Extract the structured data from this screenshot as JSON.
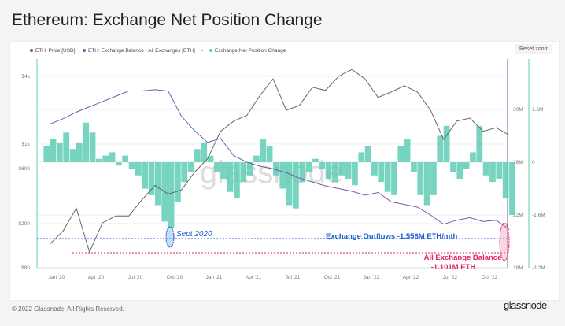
{
  "title": "Ethereum: Exchange Net Position Change",
  "reset_zoom": "Reset zoom",
  "footer": "© 2022 Glassnode. All Rights Reserved.",
  "logo": "glassnode",
  "watermark": "glassnode",
  "colors": {
    "price": "#666666",
    "balance": "#6a5fa8",
    "netchange": "#5fcdb5",
    "outflow": "#1e5fd6",
    "balanceAnno": "#e0245e"
  },
  "chart_data": {
    "type": "line+bar",
    "title": "Ethereum: Exchange Net Position Change",
    "legend": [
      "ETH: Price [USD]",
      "ETH: Exchange Balance - All Exchanges [ETH]",
      "Exchange Net Position Change"
    ],
    "legend_placement": "top-left",
    "x_ticks": [
      "Jan '20",
      "Apr '20",
      "Jul '20",
      "Oct '20",
      "Jan '21",
      "Apr '21",
      "Jul '21",
      "Oct '21",
      "Jan '22",
      "Apr '22",
      "Jul '22",
      "Oct '22"
    ],
    "y_left_ticks": [
      "$4k",
      "$1k",
      "$600",
      "$200",
      "$80"
    ],
    "y_right1_ticks": [
      "30M",
      "26M",
      "22M",
      "18M"
    ],
    "y_right2_ticks": [
      "1.6M",
      "0",
      "-1.6M",
      "-3.2M"
    ],
    "months": [
      "Dec19",
      "Jan20",
      "Feb20",
      "Mar20",
      "Apr20",
      "May20",
      "Jun20",
      "Jul20",
      "Aug20",
      "Sep20",
      "Oct20",
      "Nov20",
      "Dec20",
      "Jan21",
      "Feb21",
      "Mar21",
      "Apr21",
      "May21",
      "Jun21",
      "Jul21",
      "Aug21",
      "Sep21",
      "Oct21",
      "Nov21",
      "Dec21",
      "Jan22",
      "Feb22",
      "Mar22",
      "Apr22",
      "May22",
      "Jun22",
      "Jul22",
      "Aug22",
      "Sep22",
      "Oct22",
      "Nov22"
    ],
    "price_usd": [
      130,
      170,
      270,
      110,
      200,
      230,
      230,
      320,
      430,
      360,
      390,
      560,
      740,
      1300,
      1600,
      1800,
      2700,
      3800,
      2000,
      2200,
      3200,
      3000,
      4000,
      4600,
      3800,
      2600,
      2900,
      3300,
      2900,
      2000,
      1100,
      1600,
      1700,
      1300,
      1400,
      1200
    ],
    "exchange_balance_m": [
      28.9,
      29.3,
      29.8,
      30.2,
      30.6,
      31.0,
      31.4,
      31.4,
      31.5,
      31.4,
      29.5,
      28.4,
      27.5,
      27.8,
      26.5,
      26.0,
      25.7,
      25.5,
      25.2,
      24.8,
      24.5,
      24.2,
      24.0,
      23.8,
      23.5,
      23.7,
      23.0,
      22.8,
      22.6,
      22.0,
      21.3,
      21.6,
      21.8,
      21.5,
      21.6,
      20.9
    ],
    "net_position_change_m_semimonthly": [
      0.5,
      0.7,
      0.6,
      0.9,
      0.4,
      0.6,
      1.2,
      0.9,
      0.1,
      0.2,
      0.3,
      -0.1,
      0.2,
      -0.2,
      -0.4,
      -0.8,
      -1.0,
      -1.3,
      -1.8,
      -2.0,
      -1.2,
      -0.6,
      -0.3,
      0.4,
      0.6,
      0.2,
      -0.3,
      -0.5,
      -0.9,
      -1.1,
      -0.6,
      -0.4,
      0.2,
      0.7,
      0.5,
      -0.4,
      -0.8,
      -1.3,
      -1.4,
      -0.6,
      -0.3,
      0.1,
      -0.2,
      -0.5,
      -0.6,
      -0.4,
      -0.5,
      -0.7,
      0.3,
      0.5,
      -0.4,
      -0.6,
      -0.9,
      -1.0,
      0.5,
      0.7,
      -0.3,
      -1.0,
      -1.3,
      -1.0,
      0.8,
      1.1,
      -0.3,
      -0.5,
      -0.2,
      0.3,
      1.1,
      -0.4,
      -0.6,
      -0.5,
      -1.1,
      -1.6
    ],
    "annotations": {
      "sept": "Sept 2020",
      "outflows": "Exchange Outflows -1.556M ETH/mth",
      "balance1": "All Exchange Balance",
      "balance2": "-1.101M ETH"
    }
  }
}
